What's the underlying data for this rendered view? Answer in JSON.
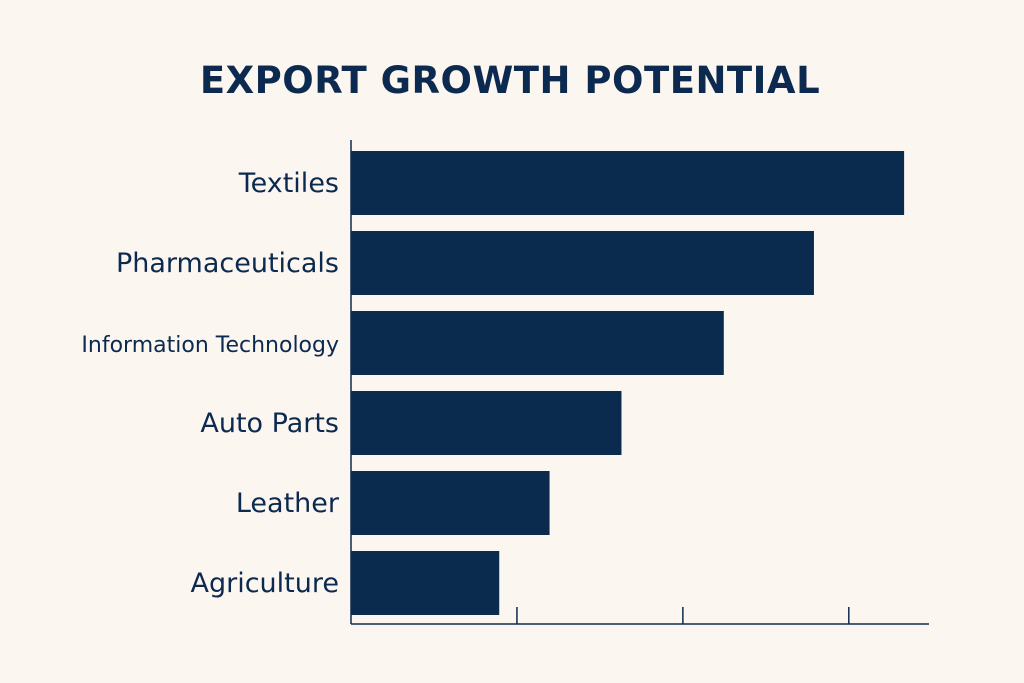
{
  "chart_data": {
    "type": "bar",
    "orientation": "horizontal",
    "title": "EXPORT GROWTH POTENTIAL",
    "categories": [
      "Textiles",
      "Pharmaceuticals",
      "Information Technology",
      "Auto Parts",
      "Leather",
      "Agriculture"
    ],
    "values": [
      100,
      83.7,
      67.4,
      48.9,
      35.9,
      26.8
    ],
    "xlim": [
      0,
      104.5
    ],
    "xticks": [
      30,
      60,
      90
    ],
    "xlabel": "",
    "ylabel": "",
    "grid": false,
    "legend": "none",
    "colors": {
      "bar": "#0a2a4e",
      "text": "#0c2a4f",
      "background": "#fcf6f0",
      "axis": "#0c2a4f"
    }
  }
}
